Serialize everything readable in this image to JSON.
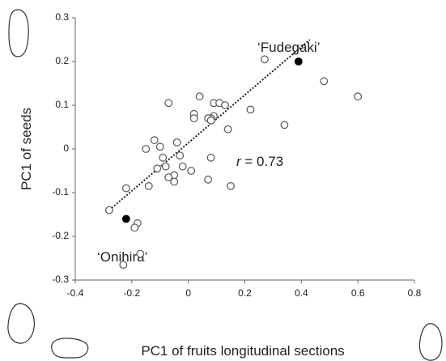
{
  "chart_data": {
    "type": "scatter",
    "xlabel": "PC1 of fruits longitudinal sections",
    "ylabel": "PC1 of seeds",
    "xlim": [
      -0.4,
      0.8
    ],
    "xticks": [
      -0.4,
      -0.2,
      0,
      0.2,
      0.4,
      0.6,
      0.8
    ],
    "ylim": [
      -0.3,
      0.3
    ],
    "yticks": [
      -0.3,
      -0.2,
      -0.1,
      0,
      0.1,
      0.2,
      0.3
    ],
    "grid": false,
    "series": [
      {
        "color": "#555555",
        "filled": false,
        "x": [
          0.27,
          0.48,
          0.6,
          0.22,
          0.04,
          -0.07,
          0.09,
          0.11,
          0.13,
          0.02,
          0.02,
          0.09,
          0.08,
          0.07,
          0.08,
          0.14,
          0.34,
          -0.12,
          -0.04,
          -0.15,
          -0.1,
          -0.03,
          -0.09,
          0.08,
          -0.11,
          -0.08,
          -0.02,
          0.01,
          -0.05,
          -0.07,
          -0.05,
          0.07,
          -0.14,
          0.15,
          -0.22,
          -0.28,
          -0.18,
          -0.19,
          -0.17,
          -0.23
        ],
        "values": [
          0.205,
          0.155,
          0.12,
          0.09,
          0.12,
          0.105,
          0.105,
          0.105,
          0.1,
          0.08,
          0.07,
          0.075,
          0.07,
          0.07,
          0.065,
          0.045,
          0.055,
          0.02,
          0.015,
          0,
          0.005,
          -0.015,
          -0.02,
          -0.02,
          -0.045,
          -0.04,
          -0.04,
          -0.05,
          -0.06,
          -0.065,
          -0.075,
          -0.07,
          -0.085,
          -0.085,
          -0.09,
          -0.14,
          -0.17,
          -0.18,
          -0.24,
          -0.265
        ]
      },
      {
        "color": "#000000",
        "filled": true,
        "x": [
          0.39,
          -0.22
        ],
        "values": [
          0.2,
          -0.16
        ]
      }
    ],
    "trendline": {
      "x": [
        -0.28,
        0.43
      ],
      "values": [
        -0.14,
        0.25
      ]
    },
    "annotations": [
      "‘Fudegaki’",
      "‘Onihira’"
    ],
    "correlation": {
      "symbol": "r",
      "text": " = 0.73"
    }
  }
}
